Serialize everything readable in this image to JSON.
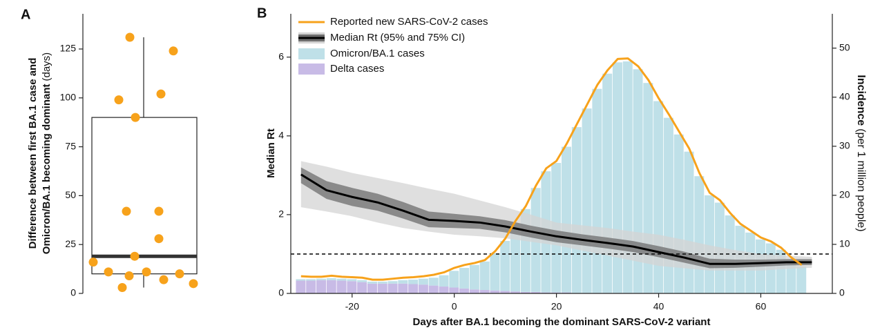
{
  "chart_data": [
    {
      "type": "box",
      "panel": "A",
      "ylabel": [
        "Difference between first BA.1 case and",
        "Omicron/BA.1 becoming dominant",
        "(days)"
      ],
      "ylim": [
        0,
        143
      ],
      "yticks": [
        0,
        25,
        50,
        75,
        100,
        125
      ],
      "values": [
        131,
        124,
        102,
        99,
        90,
        42,
        42,
        28,
        19,
        16,
        11,
        11,
        10,
        9,
        7,
        5,
        3
      ],
      "box": {
        "whisker_low": 3,
        "q1": 10,
        "median": 19,
        "q3": 90,
        "whisker_high": 131
      },
      "color": "#f7a21b"
    },
    {
      "type": "mixed",
      "panel": "B",
      "xlabel": "Days after BA.1 becoming the dominant SARS-CoV-2 variant",
      "ylabel": "Median Rt",
      "y2label": [
        "Incidence",
        "(per 1 million people)"
      ],
      "xlim": [
        -32,
        74
      ],
      "ylim": [
        0,
        7.1
      ],
      "y2lim": [
        0,
        57
      ],
      "xticks": [
        -20,
        0,
        20,
        40,
        60
      ],
      "yticks": [
        0,
        2,
        4,
        6
      ],
      "y2ticks": [
        0,
        10,
        20,
        30,
        40,
        50
      ],
      "hline": 1,
      "x": [
        -30,
        -28,
        -26,
        -24,
        -22,
        -20,
        -18,
        -16,
        -14,
        -12,
        -10,
        -8,
        -6,
        -4,
        -2,
        0,
        2,
        4,
        6,
        8,
        10,
        12,
        14,
        16,
        18,
        20,
        22,
        24,
        26,
        28,
        30,
        32,
        34,
        36,
        38,
        40,
        42,
        44,
        46,
        48,
        50,
        52,
        54,
        56,
        58,
        60,
        62,
        64,
        66,
        68
      ],
      "series": [
        {
          "name": "Reported new SARS-CoV-2 cases",
          "color": "#f7a21b",
          "axis": "y2",
          "values": [
            3.5,
            3.4,
            3.4,
            3.6,
            3.4,
            3.3,
            3.2,
            2.8,
            2.8,
            3.0,
            3.2,
            3.3,
            3.5,
            3.8,
            4.3,
            5.2,
            5.8,
            6.2,
            6.8,
            8.6,
            11.2,
            14.8,
            17.8,
            22.0,
            25.5,
            27.0,
            30.5,
            34.5,
            38.5,
            42.5,
            45.5,
            47.8,
            47.9,
            46.3,
            43.5,
            39.8,
            36.5,
            33.0,
            29.5,
            24.5,
            20.5,
            19.0,
            16.4,
            14.2,
            12.8,
            11.4,
            10.6,
            9.3,
            7.3,
            5.8
          ]
        },
        {
          "name": "Median Rt (95% and 75% CI)",
          "color": "#000000",
          "ci95_color": "#d4d4d4",
          "ci75_color": "#6e6e6e",
          "x": [
            -30,
            -25,
            -20,
            -15,
            -10,
            -5,
            0,
            5,
            10,
            15,
            20,
            25,
            30,
            35,
            40,
            45,
            50,
            55,
            60,
            65,
            70
          ],
          "values": [
            3.02,
            2.62,
            2.45,
            2.31,
            2.1,
            1.87,
            1.84,
            1.8,
            1.7,
            1.57,
            1.45,
            1.36,
            1.28,
            1.19,
            1.05,
            0.91,
            0.75,
            0.75,
            0.77,
            0.79,
            0.79
          ],
          "ci95_high": [
            3.36,
            3.22,
            3.06,
            2.93,
            2.8,
            2.66,
            2.53,
            2.36,
            2.19,
            2.0,
            1.8,
            1.73,
            1.66,
            1.57,
            1.49,
            1.36,
            1.22,
            1.1,
            1.0,
            0.96,
            0.93
          ],
          "ci95_low": [
            2.19,
            2.08,
            1.96,
            1.8,
            1.66,
            1.57,
            1.49,
            1.45,
            1.4,
            1.31,
            1.22,
            1.09,
            0.96,
            0.83,
            0.7,
            0.64,
            0.58,
            0.58,
            0.58,
            0.62,
            0.65
          ],
          "ci75_high": [
            3.2,
            2.85,
            2.68,
            2.53,
            2.32,
            2.08,
            2.02,
            1.96,
            1.86,
            1.72,
            1.6,
            1.5,
            1.42,
            1.33,
            1.2,
            1.06,
            0.88,
            0.86,
            0.86,
            0.87,
            0.87
          ],
          "ci75_low": [
            2.8,
            2.4,
            2.22,
            2.1,
            1.9,
            1.68,
            1.66,
            1.64,
            1.55,
            1.42,
            1.3,
            1.22,
            1.14,
            1.05,
            0.92,
            0.78,
            0.64,
            0.65,
            0.68,
            0.71,
            0.72
          ]
        },
        {
          "name": "Omicron/BA.1 cases",
          "color": "#bfe0e8",
          "axis": "y2",
          "values": [
            0.3,
            0.3,
            0.3,
            0.4,
            0.4,
            0.4,
            0.4,
            0.4,
            0.4,
            0.5,
            0.7,
            0.9,
            1.2,
            1.6,
            2.3,
            3.4,
            4.2,
            5.0,
            5.8,
            7.6,
            10.2,
            13.8,
            16.9,
            21.2,
            24.7,
            26.4,
            29.7,
            33.8,
            37.6,
            41.6,
            44.7,
            47.0,
            47.2,
            45.6,
            42.8,
            39.1,
            35.8,
            32.4,
            28.9,
            23.9,
            20.0,
            18.5,
            15.9,
            13.8,
            12.4,
            11.0,
            10.2,
            8.9,
            7.0,
            5.5
          ]
        },
        {
          "name": "Delta cases",
          "color": "#c8bbe6",
          "axis": "y2",
          "values": [
            2.6,
            2.6,
            2.7,
            2.7,
            2.6,
            2.5,
            2.3,
            2.0,
            2.0,
            2.0,
            2.0,
            1.9,
            1.8,
            1.6,
            1.4,
            1.2,
            1.0,
            0.8,
            0.7,
            0.6,
            0.5,
            0.4,
            0.3,
            0.3,
            0.2,
            0.2,
            0.2,
            0.1,
            0.1,
            0.1,
            0.1,
            0.1,
            0.1,
            0.1,
            0.1,
            0.1,
            0,
            0,
            0,
            0,
            0,
            0,
            0,
            0,
            0,
            0,
            0,
            0,
            0,
            0
          ]
        }
      ]
    }
  ]
}
